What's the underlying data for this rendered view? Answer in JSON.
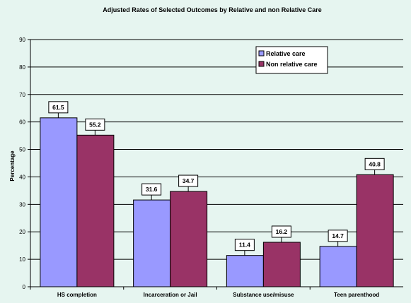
{
  "chart_data": {
    "type": "bar",
    "title": "Adjusted Rates of Selected Outcomes by Relative and non Relative Care",
    "xlabel": "",
    "ylabel": "Percentage",
    "ylim": [
      0,
      90
    ],
    "yticks": [
      0,
      10,
      20,
      30,
      40,
      50,
      60,
      70,
      80,
      90
    ],
    "grid": true,
    "legend_position": "top-right",
    "categories": [
      "HS completion",
      "Incarceration or Jail",
      "Substance use/misuse",
      "Teen parenthood"
    ],
    "series": [
      {
        "name": "Relative care",
        "color": "#9999ff",
        "values": [
          61.5,
          31.6,
          11.4,
          14.7
        ]
      },
      {
        "name": "Non relative care",
        "color": "#993366",
        "values": [
          55.2,
          34.7,
          16.2,
          40.8
        ]
      }
    ]
  }
}
